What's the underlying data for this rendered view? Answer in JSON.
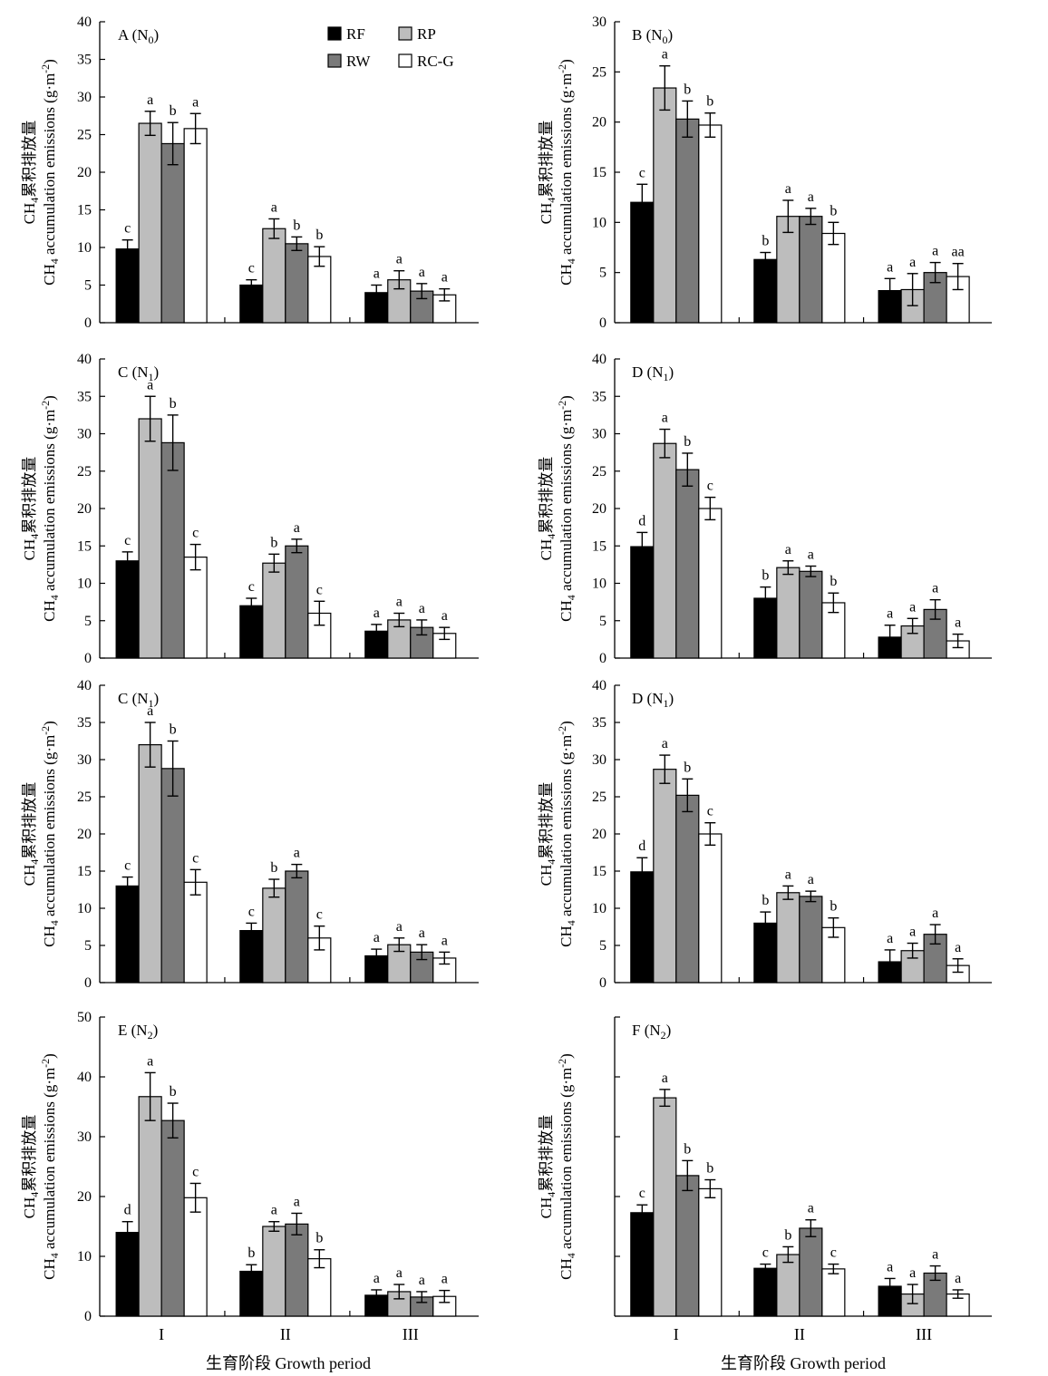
{
  "figure": {
    "x_title": "生育阶段 Growth period",
    "y_title_cn": "CH4累积排放量",
    "y_title_en": "CH4 accumulation emissions (g·m-2)",
    "categories": [
      "I",
      "II",
      "III"
    ],
    "colors": {
      "RF": "#000000",
      "RP": "#bdbdbd",
      "RW": "#7a7a7a",
      "RC-G": "#ffffff"
    }
  },
  "legend": {
    "items": [
      "RF",
      "RP",
      "RW",
      "RC-G"
    ]
  },
  "chart_data": [
    {
      "id": "A",
      "title": "A (N0)",
      "type": "bar",
      "ylim": [
        0,
        40
      ],
      "yticks": [
        0,
        5,
        10,
        15,
        20,
        25,
        30,
        35,
        40
      ],
      "categories": [
        "I",
        "II",
        "III"
      ],
      "series": [
        {
          "name": "RF",
          "values": [
            9.8,
            5.0,
            4.0
          ],
          "errors": [
            1.2,
            0.7,
            1.0
          ],
          "letters": [
            "c",
            "c",
            "a"
          ]
        },
        {
          "name": "RP",
          "values": [
            26.5,
            12.5,
            5.7
          ],
          "errors": [
            1.6,
            1.3,
            1.2
          ],
          "letters": [
            "a",
            "a",
            "a"
          ]
        },
        {
          "name": "RW",
          "values": [
            23.8,
            10.5,
            4.2
          ],
          "errors": [
            2.8,
            0.9,
            1.0
          ],
          "letters": [
            "b",
            "b",
            "a"
          ]
        },
        {
          "name": "RC-G",
          "values": [
            25.8,
            8.8,
            3.7
          ],
          "errors": [
            2.0,
            1.3,
            0.8
          ],
          "letters": [
            "a",
            "b",
            "a"
          ]
        }
      ]
    },
    {
      "id": "B",
      "title": "B (N0)",
      "type": "bar",
      "ylim": [
        0,
        30
      ],
      "yticks": [
        0,
        5,
        10,
        15,
        20,
        25,
        30
      ],
      "categories": [
        "I",
        "II",
        "III"
      ],
      "series": [
        {
          "name": "RF",
          "values": [
            12.0,
            6.3,
            3.2
          ],
          "errors": [
            1.8,
            0.7,
            1.2
          ],
          "letters": [
            "c",
            "b",
            "a"
          ]
        },
        {
          "name": "RP",
          "values": [
            23.4,
            10.6,
            3.3
          ],
          "errors": [
            2.2,
            1.6,
            1.6
          ],
          "letters": [
            "a",
            "a",
            "a"
          ]
        },
        {
          "name": "RW",
          "values": [
            20.3,
            10.6,
            5.0
          ],
          "errors": [
            1.8,
            0.8,
            1.0
          ],
          "letters": [
            "b",
            "a",
            "a"
          ]
        },
        {
          "name": "RC-G",
          "values": [
            19.7,
            8.9,
            4.6
          ],
          "errors": [
            1.2,
            1.1,
            1.3
          ],
          "letters": [
            "b",
            "b",
            "aa"
          ]
        }
      ]
    },
    {
      "id": "C1",
      "title": "C (N1)",
      "type": "bar",
      "ylim": [
        0,
        40
      ],
      "yticks": [
        0,
        5,
        10,
        15,
        20,
        25,
        30,
        35,
        40
      ],
      "categories": [
        "I",
        "II",
        "III"
      ],
      "series": [
        {
          "name": "RF",
          "values": [
            13.0,
            7.0,
            3.6
          ],
          "errors": [
            1.2,
            1.0,
            0.9
          ],
          "letters": [
            "c",
            "c",
            "a"
          ]
        },
        {
          "name": "RP",
          "values": [
            32.0,
            12.7,
            5.1
          ],
          "errors": [
            3.0,
            1.2,
            0.9
          ],
          "letters": [
            "a",
            "b",
            "a"
          ]
        },
        {
          "name": "RW",
          "values": [
            28.8,
            15.0,
            4.1
          ],
          "errors": [
            3.7,
            0.9,
            1.0
          ],
          "letters": [
            "b",
            "a",
            "a"
          ]
        },
        {
          "name": "RC-G",
          "values": [
            13.5,
            6.0,
            3.3
          ],
          "errors": [
            1.7,
            1.6,
            0.8
          ],
          "letters": [
            "c",
            "c",
            "a"
          ]
        }
      ]
    },
    {
      "id": "D1",
      "title": "D (N1)",
      "type": "bar",
      "ylim": [
        0,
        40
      ],
      "yticks": [
        0,
        5,
        10,
        15,
        20,
        25,
        30,
        35,
        40
      ],
      "categories": [
        "I",
        "II",
        "III"
      ],
      "series": [
        {
          "name": "RF",
          "values": [
            14.9,
            8.0,
            2.8
          ],
          "errors": [
            1.9,
            1.5,
            1.6
          ],
          "letters": [
            "d",
            "b",
            "a"
          ]
        },
        {
          "name": "RP",
          "values": [
            28.7,
            12.1,
            4.3
          ],
          "errors": [
            1.9,
            0.9,
            1.0
          ],
          "letters": [
            "a",
            "a",
            "a"
          ]
        },
        {
          "name": "RW",
          "values": [
            25.2,
            11.6,
            6.5
          ],
          "errors": [
            2.2,
            0.7,
            1.3
          ],
          "letters": [
            "b",
            "a",
            "a"
          ]
        },
        {
          "name": "RC-G",
          "values": [
            20.0,
            7.4,
            2.3
          ],
          "errors": [
            1.5,
            1.3,
            0.9
          ],
          "letters": [
            "c",
            "b",
            "a"
          ]
        }
      ]
    },
    {
      "id": "C2",
      "title": "C (N1)",
      "type": "bar",
      "ylim": [
        0,
        40
      ],
      "yticks": [
        0,
        5,
        10,
        15,
        20,
        25,
        30,
        35,
        40
      ],
      "categories": [
        "I",
        "II",
        "III"
      ],
      "series": [
        {
          "name": "RF",
          "values": [
            13.0,
            7.0,
            3.6
          ],
          "errors": [
            1.2,
            1.0,
            0.9
          ],
          "letters": [
            "c",
            "c",
            "a"
          ]
        },
        {
          "name": "RP",
          "values": [
            32.0,
            12.7,
            5.1
          ],
          "errors": [
            3.0,
            1.2,
            0.9
          ],
          "letters": [
            "a",
            "b",
            "a"
          ]
        },
        {
          "name": "RW",
          "values": [
            28.8,
            15.0,
            4.1
          ],
          "errors": [
            3.7,
            0.9,
            1.0
          ],
          "letters": [
            "b",
            "a",
            "a"
          ]
        },
        {
          "name": "RC-G",
          "values": [
            13.5,
            6.0,
            3.3
          ],
          "errors": [
            1.7,
            1.6,
            0.8
          ],
          "letters": [
            "c",
            "c",
            "a"
          ]
        }
      ]
    },
    {
      "id": "D2",
      "title": "D (N1)",
      "type": "bar",
      "ylim": [
        0,
        40
      ],
      "yticks": [
        0,
        5,
        10,
        15,
        20,
        25,
        30,
        35,
        40
      ],
      "categories": [
        "I",
        "II",
        "III"
      ],
      "series": [
        {
          "name": "RF",
          "values": [
            14.9,
            8.0,
            2.8
          ],
          "errors": [
            1.9,
            1.5,
            1.6
          ],
          "letters": [
            "d",
            "b",
            "a"
          ]
        },
        {
          "name": "RP",
          "values": [
            28.7,
            12.1,
            4.3
          ],
          "errors": [
            1.9,
            0.9,
            1.0
          ],
          "letters": [
            "a",
            "a",
            "a"
          ]
        },
        {
          "name": "RW",
          "values": [
            25.2,
            11.6,
            6.5
          ],
          "errors": [
            2.2,
            0.7,
            1.3
          ],
          "letters": [
            "b",
            "a",
            "a"
          ]
        },
        {
          "name": "RC-G",
          "values": [
            20.0,
            7.4,
            2.3
          ],
          "errors": [
            1.5,
            1.3,
            0.9
          ],
          "letters": [
            "c",
            "b",
            "a"
          ]
        }
      ]
    },
    {
      "id": "E",
      "title": "E (N2)",
      "type": "bar",
      "ylim": [
        0,
        50
      ],
      "yticks": [
        0,
        10,
        20,
        30,
        40,
        50
      ],
      "categories": [
        "I",
        "II",
        "III"
      ],
      "series": [
        {
          "name": "RF",
          "values": [
            14.0,
            7.5,
            3.5
          ],
          "errors": [
            1.8,
            1.1,
            0.9
          ],
          "letters": [
            "d",
            "b",
            "a"
          ]
        },
        {
          "name": "RP",
          "values": [
            36.7,
            15.0,
            4.1
          ],
          "errors": [
            4.0,
            0.8,
            1.2
          ],
          "letters": [
            "a",
            "a",
            "a"
          ]
        },
        {
          "name": "RW",
          "values": [
            32.7,
            15.4,
            3.2
          ],
          "errors": [
            2.9,
            1.8,
            0.9
          ],
          "letters": [
            "b",
            "a",
            "a"
          ]
        },
        {
          "name": "RC-G",
          "values": [
            19.8,
            9.6,
            3.3
          ],
          "errors": [
            2.4,
            1.5,
            1.0
          ],
          "letters": [
            "c",
            "b",
            "a"
          ]
        }
      ]
    },
    {
      "id": "F",
      "title": "F (N2)",
      "type": "bar",
      "ylim": [
        0,
        50
      ],
      "yticks": [
        0,
        10,
        20,
        30,
        40,
        50
      ],
      "ytick_labels": false,
      "categories": [
        "I",
        "II",
        "III"
      ],
      "series": [
        {
          "name": "RF",
          "values": [
            17.3,
            8.0,
            5.0
          ],
          "errors": [
            1.3,
            0.7,
            1.3
          ],
          "letters": [
            "c",
            "c",
            "a"
          ]
        },
        {
          "name": "RP",
          "values": [
            36.5,
            10.3,
            3.7
          ],
          "errors": [
            1.4,
            1.3,
            1.6
          ],
          "letters": [
            "a",
            "b",
            "a"
          ]
        },
        {
          "name": "RW",
          "values": [
            23.5,
            14.7,
            7.2
          ],
          "errors": [
            2.5,
            1.4,
            1.2
          ],
          "letters": [
            "b",
            "a",
            "a"
          ]
        },
        {
          "name": "RC-G",
          "values": [
            21.3,
            7.9,
            3.7
          ],
          "errors": [
            1.5,
            0.8,
            0.7
          ],
          "letters": [
            "b",
            "c",
            "a"
          ]
        }
      ]
    }
  ]
}
